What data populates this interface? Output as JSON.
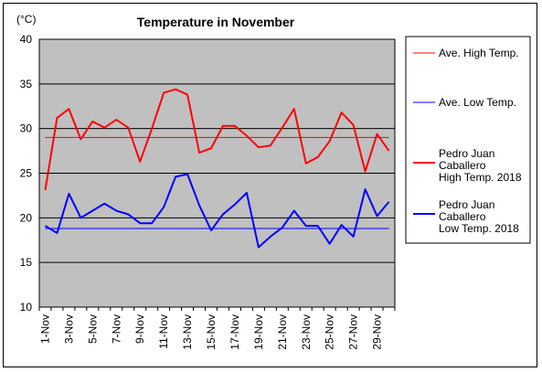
{
  "chart_data": {
    "type": "line",
    "title": "Temperature in November",
    "y_unit_label": "(°C)",
    "ylim": [
      10,
      40
    ],
    "y_ticks": [
      10,
      15,
      20,
      25,
      30,
      35,
      40
    ],
    "grid": true,
    "legend_position": "right",
    "categories": [
      "1-Nov",
      "2-Nov",
      "3-Nov",
      "4-Nov",
      "5-Nov",
      "6-Nov",
      "7-Nov",
      "8-Nov",
      "9-Nov",
      "10-Nov",
      "11-Nov",
      "12-Nov",
      "13-Nov",
      "14-Nov",
      "15-Nov",
      "16-Nov",
      "17-Nov",
      "18-Nov",
      "19-Nov",
      "20-Nov",
      "21-Nov",
      "22-Nov",
      "23-Nov",
      "24-Nov",
      "25-Nov",
      "26-Nov",
      "27-Nov",
      "28-Nov",
      "29-Nov",
      "30-Nov"
    ],
    "x_tick_labels": [
      "1-Nov",
      "3-Nov",
      "5-Nov",
      "7-Nov",
      "9-Nov",
      "11-Nov",
      "13-Nov",
      "15-Nov",
      "17-Nov",
      "19-Nov",
      "21-Nov",
      "23-Nov",
      "25-Nov",
      "27-Nov",
      "29-Nov"
    ],
    "series": [
      {
        "name": "Ave. High Temp.",
        "color": "#ff0000",
        "style": "thin",
        "values": [
          29,
          29,
          29,
          29,
          29,
          29,
          29,
          29,
          29,
          29,
          29,
          29,
          29,
          29,
          29,
          29,
          29,
          29,
          29,
          29,
          29,
          29,
          29,
          29,
          29,
          29,
          29,
          29,
          29,
          29
        ]
      },
      {
        "name": "Ave. Low Temp.",
        "color": "#0000ff",
        "style": "thin",
        "values": [
          18.8,
          18.8,
          18.8,
          18.8,
          18.8,
          18.8,
          18.8,
          18.8,
          18.8,
          18.8,
          18.8,
          18.8,
          18.8,
          18.8,
          18.8,
          18.8,
          18.8,
          18.8,
          18.8,
          18.8,
          18.8,
          18.8,
          18.8,
          18.8,
          18.8,
          18.8,
          18.8,
          18.8,
          18.8,
          18.8
        ]
      },
      {
        "name": "Pedro Juan Caballero High Temp. 2018",
        "legend_lines": [
          "Pedro Juan",
          "Caballero",
          "High Temp. 2018"
        ],
        "color": "#ff0000",
        "style": "thick",
        "values": [
          23.1,
          31.2,
          32.2,
          28.8,
          30.8,
          30.1,
          31.0,
          30.1,
          26.3,
          30.0,
          34.0,
          34.4,
          33.8,
          27.3,
          27.8,
          30.3,
          30.3,
          29.2,
          27.9,
          28.1,
          30.1,
          32.2,
          26.1,
          26.8,
          28.6,
          31.8,
          30.4,
          25.2,
          29.4,
          27.5
        ]
      },
      {
        "name": "Pedro Juan Caballero Low Temp. 2018",
        "legend_lines": [
          "Pedro Juan",
          "Caballero",
          "Low Temp. 2018"
        ],
        "color": "#0000ff",
        "style": "thick",
        "values": [
          19.1,
          18.3,
          22.7,
          20.0,
          20.8,
          21.6,
          20.8,
          20.4,
          19.4,
          19.4,
          21.2,
          24.6,
          24.9,
          21.4,
          18.6,
          20.4,
          21.5,
          22.8,
          16.7,
          17.9,
          18.9,
          20.8,
          19.1,
          19.1,
          17.1,
          19.2,
          17.9,
          23.2,
          20.2,
          21.8
        ]
      }
    ]
  }
}
